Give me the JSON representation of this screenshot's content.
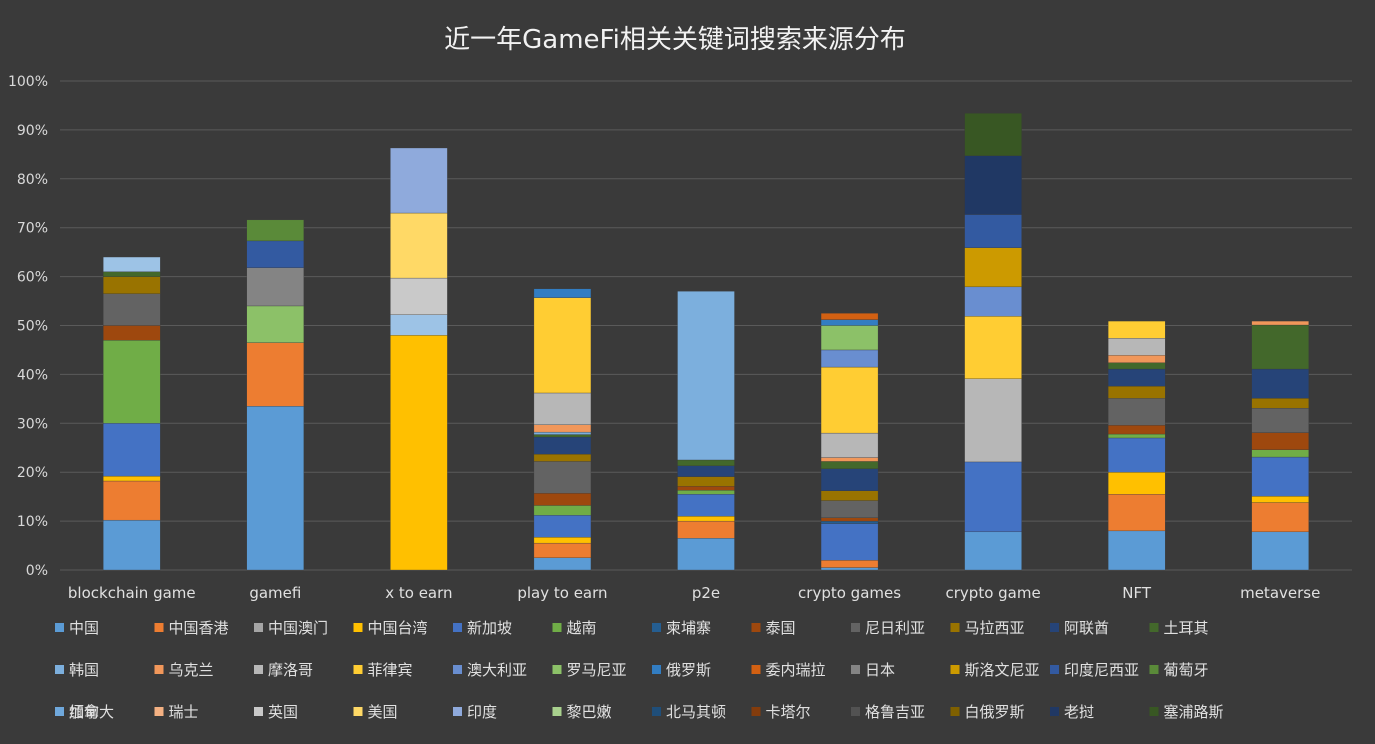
{
  "chart_data": {
    "type": "bar",
    "stacked": true,
    "title": "近一年GameFi相关关键词搜索来源分布",
    "xlabel": "",
    "ylabel": "",
    "ylim": [
      0,
      100
    ],
    "y_ticks": [
      "0%",
      "10%",
      "20%",
      "30%",
      "40%",
      "50%",
      "60%",
      "70%",
      "80%",
      "90%",
      "100%"
    ],
    "grid": true,
    "legend_position": "bottom",
    "categories": [
      "blockchain game",
      "gamefi",
      "x to earn",
      "play to earn",
      "p2e",
      "crypto games",
      "crypto game",
      "NFT",
      "metaverse"
    ],
    "series": [
      {
        "name": "中国",
        "color": "#5b9bd5",
        "values": [
          10.2,
          33.5,
          0,
          2.5,
          6.5,
          0.5,
          7.8,
          8,
          7.8
        ]
      },
      {
        "name": "中国香港",
        "color": "#ed7d31",
        "values": [
          8,
          13,
          0,
          3,
          3.5,
          1.5,
          0,
          7.5,
          6
        ]
      },
      {
        "name": "中国澳门",
        "color": "#a5a5a5",
        "values": [
          0,
          0,
          0,
          0,
          0,
          0,
          0,
          0,
          0
        ]
      },
      {
        "name": "中国台湾",
        "color": "#ffc000",
        "values": [
          1,
          0,
          48,
          1.2,
          1,
          0,
          0,
          4.5,
          1.3
        ]
      },
      {
        "name": "新加坡",
        "color": "#4472c4",
        "values": [
          10.8,
          0,
          0,
          4.5,
          4.5,
          7.5,
          14.3,
          7,
          8
        ]
      },
      {
        "name": "越南",
        "color": "#70ad47",
        "values": [
          17,
          0,
          0,
          2,
          0.8,
          0,
          0,
          0.8,
          1.5
        ]
      },
      {
        "name": "柬埔寨",
        "color": "#255e91",
        "values": [
          0,
          0,
          0,
          0,
          0,
          0.5,
          0,
          0,
          0
        ]
      },
      {
        "name": "泰国",
        "color": "#9e480e",
        "values": [
          3,
          0,
          0,
          2.5,
          0.8,
          0.7,
          0,
          1.8,
          3.5
        ]
      },
      {
        "name": "尼日利亚",
        "color": "#636363",
        "values": [
          6.5,
          0,
          0,
          6.5,
          0,
          3.5,
          0,
          5.5,
          5
        ]
      },
      {
        "name": "马拉西亚",
        "color": "#997300",
        "values": [
          3.5,
          0,
          0,
          1.5,
          2,
          2,
          0,
          2.5,
          2
        ]
      },
      {
        "name": "阿联酋",
        "color": "#264478",
        "values": [
          0,
          0,
          0,
          3.5,
          2.2,
          4.5,
          0,
          3.5,
          6
        ]
      },
      {
        "name": "土耳其",
        "color": "#43682b",
        "values": [
          1,
          0,
          0,
          0.5,
          1.2,
          1.5,
          0,
          1.3,
          9
        ]
      },
      {
        "name": "韩国",
        "color": "#7cafdd",
        "values": [
          0,
          0,
          0,
          0.5,
          34.5,
          0,
          0,
          0,
          0
        ]
      },
      {
        "name": "乌克兰",
        "color": "#f1975a",
        "values": [
          0,
          0,
          0,
          1.5,
          0,
          0.8,
          0,
          1.5,
          0.8
        ]
      },
      {
        "name": "摩洛哥",
        "color": "#b7b7b7",
        "values": [
          0,
          0,
          0,
          6.5,
          0,
          5,
          17,
          3.5,
          0
        ]
      },
      {
        "name": "菲律宾",
        "color": "#ffcd33",
        "values": [
          0,
          0,
          0,
          19.5,
          0,
          13.5,
          12.8,
          3.5,
          0
        ]
      },
      {
        "name": "澳大利亚",
        "color": "#698ed0",
        "values": [
          0,
          0,
          0,
          0,
          0,
          3.5,
          6,
          0,
          0
        ]
      },
      {
        "name": "罗马尼亚",
        "color": "#8cc168",
        "values": [
          0,
          7.5,
          0,
          0,
          0,
          5,
          0,
          0,
          0
        ]
      },
      {
        "name": "俄罗斯",
        "color": "#327dc2",
        "values": [
          0,
          0,
          0,
          1.8,
          0,
          1.2,
          0,
          0,
          0
        ]
      },
      {
        "name": "委内瑞拉",
        "color": "#d26012",
        "values": [
          0,
          0,
          0,
          0,
          0,
          1.3,
          0,
          0,
          0
        ]
      },
      {
        "name": "日本",
        "color": "#848484",
        "values": [
          0,
          7.8,
          0,
          0,
          0,
          0,
          0,
          0,
          0
        ]
      },
      {
        "name": "斯洛文尼亚",
        "color": "#cc9a00",
        "values": [
          0,
          0,
          0,
          0,
          0,
          0,
          8,
          0,
          0
        ]
      },
      {
        "name": "印度尼西亚",
        "color": "#335aa1",
        "values": [
          0,
          5.5,
          0,
          0,
          0,
          0,
          6.8,
          0,
          0
        ]
      },
      {
        "name": "葡萄牙",
        "color": "#5a8a39",
        "values": [
          0,
          4.3,
          0,
          0,
          0,
          0,
          0,
          0,
          0
        ]
      },
      {
        "name": "加拿大",
        "color": "#9dc3e6",
        "values": [
          3,
          0,
          4.2,
          0,
          0,
          0,
          0,
          0,
          0
        ]
      },
      {
        "name": "瑞士",
        "color": "#f4b183",
        "values": [
          0,
          0,
          0,
          0,
          0,
          0,
          0,
          0,
          0
        ]
      },
      {
        "name": "英国",
        "color": "#c9c9c9",
        "values": [
          0,
          0,
          7.5,
          0,
          0,
          0,
          0,
          0,
          0
        ]
      },
      {
        "name": "美国",
        "color": "#ffd966",
        "values": [
          0,
          0,
          13.3,
          0,
          0,
          0,
          0,
          0,
          0
        ]
      },
      {
        "name": "印度",
        "color": "#8faadc",
        "values": [
          0,
          0,
          13.3,
          0,
          0,
          0,
          0,
          0,
          0
        ]
      },
      {
        "name": "黎巴嫩",
        "color": "#a9d18e",
        "values": [
          0,
          0,
          0,
          0,
          0,
          0,
          0,
          0,
          0
        ]
      },
      {
        "name": "北马其顿",
        "color": "#1f4e79",
        "values": [
          0,
          0,
          0,
          0,
          0,
          0,
          0,
          0,
          0
        ]
      },
      {
        "name": "卡塔尔",
        "color": "#843c0c",
        "values": [
          0,
          0,
          0,
          0,
          0,
          0,
          0,
          0,
          0
        ]
      },
      {
        "name": "格鲁吉亚",
        "color": "#525252",
        "values": [
          0,
          0,
          0,
          0,
          0,
          0,
          0,
          0,
          0
        ]
      },
      {
        "name": "白俄罗斯",
        "color": "#7f6000",
        "values": [
          0,
          0,
          0,
          0,
          0,
          0,
          0,
          0,
          0
        ]
      },
      {
        "name": "老挝",
        "color": "#203864",
        "values": [
          0,
          0,
          0,
          0,
          0,
          0,
          12,
          0,
          0
        ]
      },
      {
        "name": "塞浦路斯",
        "color": "#385723",
        "values": [
          0,
          0,
          0,
          0,
          0,
          0,
          8.7,
          0,
          0
        ]
      },
      {
        "name": "缅甸",
        "color": "#6fa8dc",
        "values": [
          0,
          0,
          0,
          0,
          0,
          0,
          0,
          0,
          0
        ]
      }
    ]
  }
}
